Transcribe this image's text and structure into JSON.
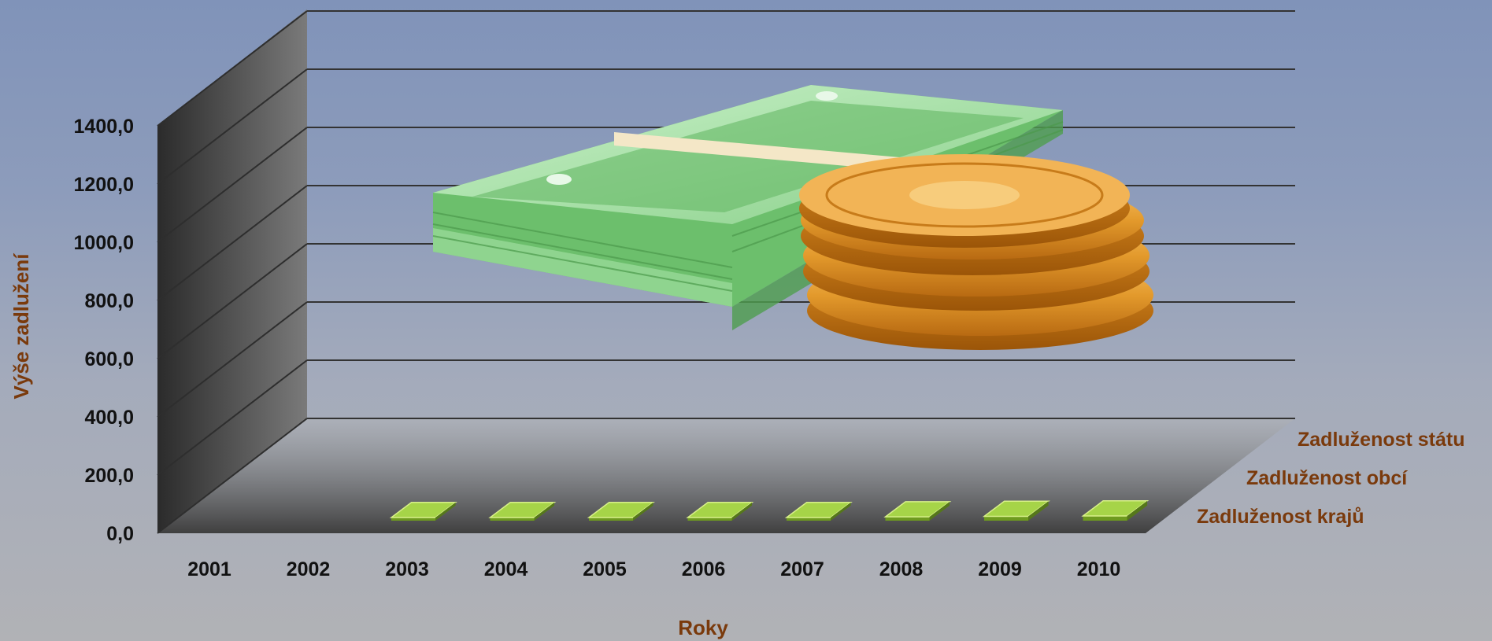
{
  "chart_data": {
    "type": "bar",
    "subtype": "3d-column",
    "title": "",
    "xlabel": "Roky",
    "ylabel": "Výše zadlužení",
    "ylim": [
      0,
      1400
    ],
    "y_ticks": [
      "0,0",
      "200,0",
      "400,0",
      "600,0",
      "800,0",
      "1000,0",
      "1200,0",
      "1400,0"
    ],
    "categories": [
      "2001",
      "2002",
      "2003",
      "2004",
      "2005",
      "2006",
      "2007",
      "2008",
      "2009",
      "2010"
    ],
    "series": [
      {
        "name": "Zadluženost krajů",
        "values": [
          null,
          null,
          6,
          8,
          10,
          13,
          18,
          22,
          25,
          27
        ]
      },
      {
        "name": "Zadluženost obcí",
        "values": [
          null,
          null,
          null,
          null,
          null,
          null,
          null,
          null,
          null,
          null
        ]
      },
      {
        "name": "Zadluženost státu",
        "values": [
          null,
          null,
          null,
          null,
          null,
          null,
          null,
          null,
          null,
          null
        ]
      }
    ],
    "grid": true,
    "colors": {
      "bar_front": "#6e9a1f",
      "bar_top": "#a6d448",
      "bar_side": "#55781a",
      "axis_title": "#7a3a0c"
    },
    "illustration": [
      "money-stack-icon",
      "gold-coins-icon"
    ]
  }
}
